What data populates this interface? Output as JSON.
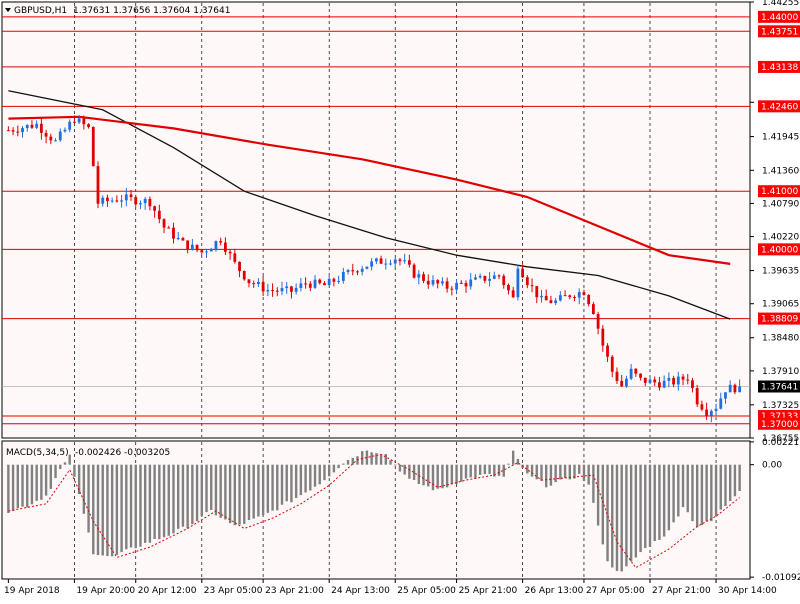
{
  "header": {
    "symbol_title": "GBPUSD,H1",
    "ohlc": "1.37631 1.37656 1.37604 1.37641"
  },
  "macd_header": {
    "title": "MACD(5,34,5)",
    "values": "-0.002426 -0.003205"
  },
  "colors": {
    "background": "#FFF8F8",
    "bull_candle": "#1E6FE0",
    "bear_candle": "#E00000",
    "ma_fast": "#111111",
    "ma_slow": "#E00000",
    "level_line": "#E00000",
    "level_label_bg": "#FF0000",
    "current_price_label_bg": "#000000",
    "histogram": "#808080",
    "signal": "#E00000"
  },
  "chart_data": [
    {
      "type": "candlestick",
      "series_name": "GBPUSD,H1",
      "ylim": [
        1.36755,
        1.44255
      ],
      "price_axis_ticks": [
        1.44255,
        1.4253,
        1.4194,
        1.4136,
        1.4079,
        1.4022,
        1.39635,
        1.39065,
        1.3848,
        1.3791,
        1.37325,
        1.36755
      ],
      "price_axis_tick_labels": [
        "1.44255",
        "",
        "1.41945",
        "1.41360",
        "1.40790",
        "1.40220",
        "1.39635",
        "1.39065",
        "1.38480",
        "1.37910",
        "1.37325",
        "1.36755"
      ],
      "x_tick_labels": [
        "19 Apr 2018",
        "19 Apr 20:00",
        "20 Apr 12:00",
        "23 Apr 05:00",
        "23 Apr 21:00",
        "24 Apr 13:00",
        "25 Apr 05:00",
        "25 Apr 21:00",
        "26 Apr 13:00",
        "27 Apr 05:00",
        "27 Apr 21:00",
        "30 Apr 14:00"
      ],
      "horizontal_levels": [
        {
          "value": 1.44,
          "label": "1.44000"
        },
        {
          "value": 1.43751,
          "label": "1.43751"
        },
        {
          "value": 1.43138,
          "label": "1.43138"
        },
        {
          "value": 1.4246,
          "label": "1.42460"
        },
        {
          "value": 1.41,
          "label": "1.41000"
        },
        {
          "value": 1.4,
          "label": "1.40000"
        },
        {
          "value": 1.38809,
          "label": "1.38809"
        },
        {
          "value": 1.37133,
          "label": "1.37133"
        },
        {
          "value": 1.37,
          "label": "1.37000"
        }
      ],
      "current_price": {
        "value": 1.37641,
        "label": "1.37641"
      },
      "close_path": [
        [
          0,
          1.4205
        ],
        [
          6,
          1.4215
        ],
        [
          10,
          1.4185
        ],
        [
          14,
          1.4225
        ],
        [
          17,
          1.4208
        ],
        [
          19,
          1.408
        ],
        [
          24,
          1.4088
        ],
        [
          30,
          1.4082
        ],
        [
          33,
          1.4038
        ],
        [
          37,
          1.401
        ],
        [
          41,
          1.3995
        ],
        [
          45,
          1.4018
        ],
        [
          48,
          1.3975
        ],
        [
          51,
          1.3945
        ],
        [
          55,
          1.393
        ],
        [
          60,
          1.3928
        ],
        [
          63,
          1.3942
        ],
        [
          67,
          1.3938
        ],
        [
          70,
          1.395
        ],
        [
          74,
          1.3968
        ],
        [
          78,
          1.3978
        ],
        [
          82,
          1.3985
        ],
        [
          84,
          1.3975
        ],
        [
          86,
          1.3958
        ],
        [
          89,
          1.3945
        ],
        [
          93,
          1.3935
        ],
        [
          97,
          1.3942
        ],
        [
          101,
          1.395
        ],
        [
          104,
          1.3955
        ],
        [
          107,
          1.3915
        ],
        [
          108,
          1.3975
        ],
        [
          110,
          1.3945
        ],
        [
          113,
          1.3912
        ],
        [
          116,
          1.391
        ],
        [
          119,
          1.3922
        ],
        [
          122,
          1.3928
        ],
        [
          124,
          1.3895
        ],
        [
          126,
          1.3835
        ],
        [
          128,
          1.379
        ],
        [
          130,
          1.3765
        ],
        [
          132,
          1.379
        ],
        [
          134,
          1.3775
        ],
        [
          138,
          1.377
        ],
        [
          141,
          1.3772
        ],
        [
          144,
          1.378
        ],
        [
          146,
          1.374
        ],
        [
          148,
          1.3722
        ],
        [
          150,
          1.373
        ],
        [
          152,
          1.376
        ],
        [
          154,
          1.3762
        ],
        [
          155,
          1.3764
        ]
      ],
      "moving_averages": [
        {
          "color_key": "ma_fast",
          "points": [
            [
              0,
              1.4273
            ],
            [
              20,
              1.424
            ],
            [
              35,
              1.4175
            ],
            [
              50,
              1.41
            ],
            [
              65,
              1.4058
            ],
            [
              80,
              1.402
            ],
            [
              95,
              1.399
            ],
            [
              110,
              1.397
            ],
            [
              125,
              1.3955
            ],
            [
              140,
              1.392
            ],
            [
              153,
              1.388
            ]
          ]
        },
        {
          "color_key": "ma_slow",
          "points": [
            [
              0,
              1.4225
            ],
            [
              15,
              1.4228
            ],
            [
              35,
              1.4208
            ],
            [
              55,
              1.418
            ],
            [
              75,
              1.4155
            ],
            [
              95,
              1.412
            ],
            [
              110,
              1.409
            ],
            [
              125,
              1.404
            ],
            [
              140,
              1.399
            ],
            [
              153,
              1.3975
            ]
          ]
        }
      ]
    },
    {
      "type": "bar",
      "series_name": "MACD(5,34,5)",
      "ylim": [
        -0.0111,
        0.0023
      ],
      "axis_ticks": [
        0.002211,
        0.0,
        -0.01092
      ],
      "axis_tick_labels": [
        "0.002211",
        "0.00",
        "-0.01092"
      ],
      "histogram_path": [
        [
          0,
          -0.0045
        ],
        [
          4,
          -0.004
        ],
        [
          8,
          -0.003
        ],
        [
          11,
          -0.0005
        ],
        [
          13,
          0.0008
        ],
        [
          15,
          -0.003
        ],
        [
          18,
          -0.0085
        ],
        [
          22,
          -0.009
        ],
        [
          27,
          -0.008
        ],
        [
          33,
          -0.007
        ],
        [
          38,
          -0.006
        ],
        [
          43,
          -0.0045
        ],
        [
          48,
          -0.006
        ],
        [
          54,
          -0.005
        ],
        [
          60,
          -0.0035
        ],
        [
          66,
          -0.0018
        ],
        [
          71,
          0.0002
        ],
        [
          76,
          0.0015
        ],
        [
          80,
          0.001
        ],
        [
          85,
          -0.0015
        ],
        [
          91,
          -0.0025
        ],
        [
          96,
          -0.0015
        ],
        [
          101,
          -0.001
        ],
        [
          105,
          -0.0012
        ],
        [
          107,
          0.0012
        ],
        [
          110,
          -0.001
        ],
        [
          114,
          -0.002
        ],
        [
          118,
          -0.0015
        ],
        [
          121,
          -0.001
        ],
        [
          123,
          -0.002
        ],
        [
          127,
          -0.0095
        ],
        [
          130,
          -0.0105
        ],
        [
          134,
          -0.0085
        ],
        [
          140,
          -0.0065
        ],
        [
          143,
          -0.004
        ],
        [
          146,
          -0.006
        ],
        [
          149,
          -0.0055
        ],
        [
          155,
          -0.0024
        ]
      ],
      "signal_path": [
        [
          0,
          -0.0045
        ],
        [
          8,
          -0.0038
        ],
        [
          13,
          -0.0005
        ],
        [
          18,
          -0.0055
        ],
        [
          23,
          -0.009
        ],
        [
          30,
          -0.008
        ],
        [
          38,
          -0.0062
        ],
        [
          44,
          -0.0045
        ],
        [
          50,
          -0.0062
        ],
        [
          56,
          -0.0052
        ],
        [
          62,
          -0.0038
        ],
        [
          68,
          -0.002
        ],
        [
          74,
          0.0005
        ],
        [
          79,
          0.001
        ],
        [
          85,
          -0.0005
        ],
        [
          91,
          -0.0022
        ],
        [
          97,
          -0.0015
        ],
        [
          103,
          -0.001
        ],
        [
          108,
          0.0002
        ],
        [
          113,
          -0.0015
        ],
        [
          120,
          -0.0012
        ],
        [
          124,
          -0.001
        ],
        [
          129,
          -0.0075
        ],
        [
          133,
          -0.01
        ],
        [
          140,
          -0.0082
        ],
        [
          146,
          -0.006
        ],
        [
          150,
          -0.005
        ],
        [
          155,
          -0.0032
        ]
      ]
    }
  ]
}
